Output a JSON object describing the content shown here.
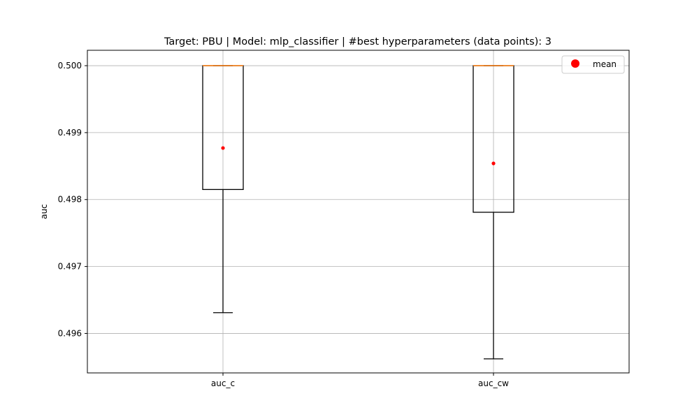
{
  "chart_data": {
    "type": "box",
    "title": "Target: PBU | Model: mlp_classifier | #best hyperparameters (data points): 3",
    "xlabel": "",
    "ylabel": "auc",
    "ylim": [
      0.49541,
      0.50023
    ],
    "yticks": [
      0.496,
      0.497,
      0.498,
      0.499,
      0.5
    ],
    "ytick_labels": [
      "0.496",
      "0.497",
      "0.498",
      "0.499",
      "0.500"
    ],
    "grid": true,
    "legend": {
      "placement": "top-right",
      "entries": [
        {
          "label": "mean",
          "marker": "circle",
          "color": "#ff0000"
        }
      ]
    },
    "categories": [
      "auc_c",
      "auc_cw"
    ],
    "boxes": [
      {
        "name": "auc_c",
        "whisker_low": 0.49631,
        "q1": 0.49815,
        "median": 0.5,
        "q3": 0.5,
        "whisker_high": 0.5,
        "mean": 0.49877
      },
      {
        "name": "auc_cw",
        "whisker_low": 0.49562,
        "q1": 0.49781,
        "median": 0.5,
        "q3": 0.5,
        "whisker_high": 0.5,
        "mean": 0.49854
      }
    ],
    "colors": {
      "box": "#000000",
      "median": "#ff7f0e",
      "mean": "#ff0000",
      "grid": "#b0b0b0"
    }
  }
}
